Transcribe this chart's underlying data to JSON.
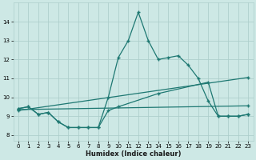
{
  "background_color": "#cde8e5",
  "grid_color": "#aecfcc",
  "line_color": "#1e7872",
  "xlabel": "Humidex (Indice chaleur)",
  "xlim": [
    -0.5,
    23.5
  ],
  "ylim": [
    7.7,
    15.0
  ],
  "yticks": [
    8,
    9,
    10,
    11,
    12,
    13,
    14
  ],
  "xticks": [
    0,
    1,
    2,
    3,
    4,
    5,
    6,
    7,
    8,
    9,
    10,
    11,
    12,
    13,
    14,
    15,
    16,
    17,
    18,
    19,
    20,
    21,
    22,
    23
  ],
  "line1_x": [
    0,
    1,
    2,
    3,
    4,
    5,
    6,
    7,
    8,
    9,
    10,
    11,
    12,
    13,
    14,
    15,
    16,
    17,
    18,
    19,
    20,
    21,
    22,
    23
  ],
  "line1_y": [
    9.4,
    9.5,
    9.1,
    9.2,
    8.7,
    8.4,
    8.4,
    8.4,
    8.4,
    10.0,
    12.1,
    13.0,
    14.5,
    13.0,
    12.0,
    12.1,
    12.2,
    11.7,
    11.0,
    9.8,
    9.0,
    9.0,
    9.0,
    9.1
  ],
  "line2_x": [
    0,
    1,
    2,
    3,
    4,
    5,
    6,
    7,
    8,
    9,
    10,
    14,
    19,
    20,
    21,
    22,
    23
  ],
  "line2_y": [
    9.4,
    9.5,
    9.1,
    9.2,
    8.7,
    8.4,
    8.4,
    8.4,
    8.4,
    9.3,
    9.5,
    10.2,
    10.8,
    9.0,
    9.0,
    9.0,
    9.1
  ],
  "line3_x": [
    0,
    23
  ],
  "line3_y": [
    9.3,
    11.05
  ],
  "line4_x": [
    0,
    23
  ],
  "line4_y": [
    9.35,
    9.55
  ]
}
